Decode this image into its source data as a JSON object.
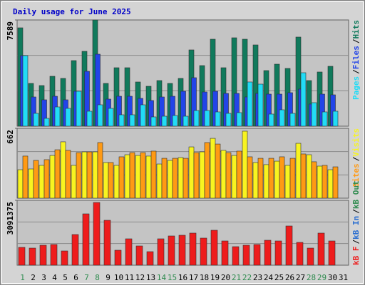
{
  "legend_separator": "/",
  "chart_data": [
    {
      "type": "bar",
      "title": "Daily usage for June 2025",
      "ylim": [
        0,
        7589
      ],
      "yticks": [
        7589
      ],
      "series": [
        {
          "name": "Pages",
          "color": "#22dcf6",
          "values": [
            5042,
            917,
            560,
            1375,
            1273,
            2496,
            1070,
            1528,
            1273,
            815,
            815,
            1528,
            662,
            713,
            764,
            713,
            1121,
            1121,
            1019,
            917,
            968,
            3158,
            3005,
            866,
            1171,
            917,
            3820,
            1681,
            1019,
            1070,
            null
          ]
        },
        {
          "name": "Files",
          "color": "#2244e8",
          "values": [
            5042,
            2088,
            1885,
            2139,
            1885,
            2496,
            3922,
            5144,
            1935,
            2139,
            2139,
            1986,
            1834,
            2088,
            2139,
            2496,
            3464,
            2445,
            2496,
            2343,
            2343,
            2088,
            2343,
            2292,
            2292,
            2394,
            2649,
            1579,
            2292,
            2241,
            null
          ]
        },
        {
          "name": "Hits",
          "color": "#107a5c",
          "values": [
            7029,
            3056,
            2903,
            3565,
            3413,
            4686,
            5348,
            7589,
            3056,
            4177,
            4177,
            3158,
            2852,
            3260,
            3056,
            3413,
            5450,
            4329,
            6214,
            4177,
            6316,
            6214,
            5806,
            3973,
            4431,
            4126,
            6367,
            3260,
            3871,
            4278,
            null
          ]
        }
      ]
    },
    {
      "type": "bar",
      "ylim": [
        0,
        662
      ],
      "yticks": [
        662
      ],
      "series": [
        {
          "name": "Sites",
          "color": "#ff9a14",
          "values": [
            399,
            358,
            365,
            459,
            453,
            432,
            439,
            527,
            338,
            392,
            432,
            432,
            446,
            378,
            378,
            378,
            432,
            527,
            513,
            432,
            446,
            392,
            378,
            378,
            392,
            378,
            419,
            345,
            311,
            297,
            null
          ]
        },
        {
          "name": "Visits",
          "color": "#f8f420",
          "values": [
            270,
            277,
            311,
            405,
            534,
            311,
            439,
            439,
            338,
            311,
            412,
            405,
            399,
            324,
            358,
            385,
            486,
            439,
            567,
            453,
            405,
            635,
            338,
            318,
            351,
            311,
            520,
            412,
            304,
            270,
            null
          ]
        }
      ]
    },
    {
      "type": "bar",
      "ylim": [
        0,
        3091375
      ],
      "yticks": [
        3091375
      ],
      "categories": [
        "1",
        "2",
        "3",
        "4",
        "5",
        "6",
        "7",
        "8",
        "9",
        "10",
        "11",
        "12",
        "13",
        "14",
        "15",
        "16",
        "17",
        "18",
        "19",
        "20",
        "21",
        "22",
        "23",
        "24",
        "25",
        "26",
        "27",
        "28",
        "29",
        "30",
        "31"
      ],
      "category_colors": [
        "#2e8b4e",
        "#000000",
        "#000000",
        "#000000",
        "#000000",
        "#000000",
        "#2e8b4e",
        "#2e8b4e",
        "#000000",
        "#000000",
        "#000000",
        "#000000",
        "#000000",
        "#2e8b4e",
        "#2e8b4e",
        "#000000",
        "#000000",
        "#000000",
        "#000000",
        "#000000",
        "#2e8b4e",
        "#2e8b4e",
        "#000000",
        "#000000",
        "#000000",
        "#000000",
        "#000000",
        "#2e8b4e",
        "#2e8b4e",
        "#000000",
        "#000000"
      ],
      "series": [
        {
          "name": "kB F",
          "color": "#ee1c1c",
          "values": [
            849000,
            815000,
            951000,
            985000,
            679000,
            1461000,
            2446000,
            2989000,
            2140000,
            713000,
            1257000,
            917000,
            645000,
            1257000,
            1393000,
            1427000,
            1529000,
            1291000,
            1665000,
            1155000,
            883000,
            951000,
            985000,
            1189000,
            1155000,
            1868000,
            1087000,
            815000,
            1529000,
            1155000,
            null
          ]
        },
        {
          "name": "kB In",
          "color": "#2c6fd0"
        },
        {
          "name": "kB Out",
          "color": "#2e8b4e"
        }
      ]
    }
  ]
}
